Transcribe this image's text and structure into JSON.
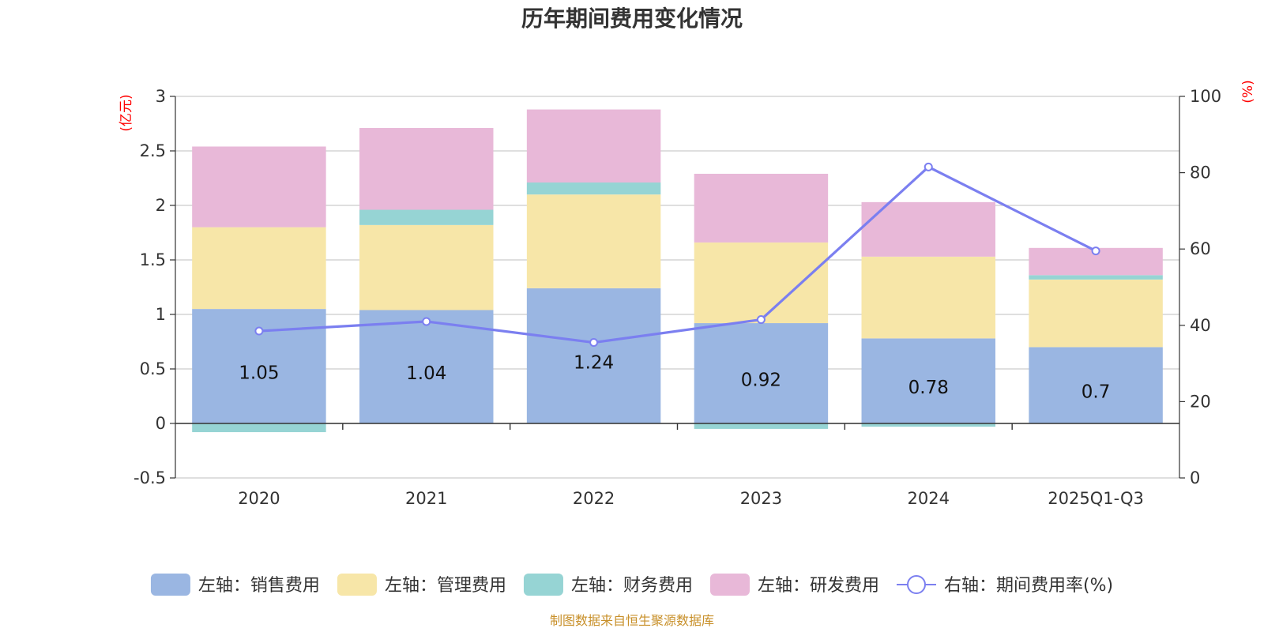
{
  "chart_data": {
    "type": "bar",
    "stacked": true,
    "title": "历年期间费用变化情况",
    "source": "制图数据来自恒生聚源数据库",
    "categories": [
      "2020",
      "2021",
      "2022",
      "2023",
      "2024",
      "2025Q1-Q3"
    ],
    "left_axis": {
      "unit": "(亿元)",
      "ylim": [
        -0.5,
        3
      ],
      "ticks": [
        "-0.5",
        "0",
        "0.5",
        "1",
        "1.5",
        "2",
        "2.5",
        "3"
      ],
      "tick_values": [
        -0.5,
        0,
        0.5,
        1,
        1.5,
        2,
        2.5,
        3
      ]
    },
    "right_axis": {
      "unit": "(%)",
      "ylim": [
        0,
        100
      ],
      "ticks": [
        "0",
        "20",
        "40",
        "60",
        "80",
        "100"
      ],
      "tick_values": [
        0,
        20,
        40,
        60,
        80,
        100
      ]
    },
    "series": [
      {
        "name": "左轴：销售费用",
        "color": "#9ab6e2",
        "values": [
          1.05,
          1.04,
          1.24,
          0.92,
          0.78,
          0.7
        ],
        "labels": [
          "1.05",
          "1.04",
          "1.24",
          "0.92",
          "0.78",
          "0.7"
        ]
      },
      {
        "name": "左轴：管理费用",
        "color": "#f7e6a8",
        "values": [
          0.75,
          0.78,
          0.86,
          0.74,
          0.75,
          0.62
        ]
      },
      {
        "name": "左轴：财务费用",
        "color": "#96d4d4",
        "values": [
          -0.08,
          0.14,
          0.11,
          -0.05,
          -0.03,
          0.04
        ]
      },
      {
        "name": "左轴：研发费用",
        "color": "#e8b8d8",
        "values": [
          0.74,
          0.75,
          0.67,
          0.63,
          0.5,
          0.25
        ]
      }
    ],
    "line": {
      "name": "右轴：期间费用率(%)",
      "color": "#7b7ff0",
      "axis": "right",
      "values": [
        38.5,
        41,
        35.5,
        41.5,
        81.5,
        59.5
      ]
    }
  }
}
